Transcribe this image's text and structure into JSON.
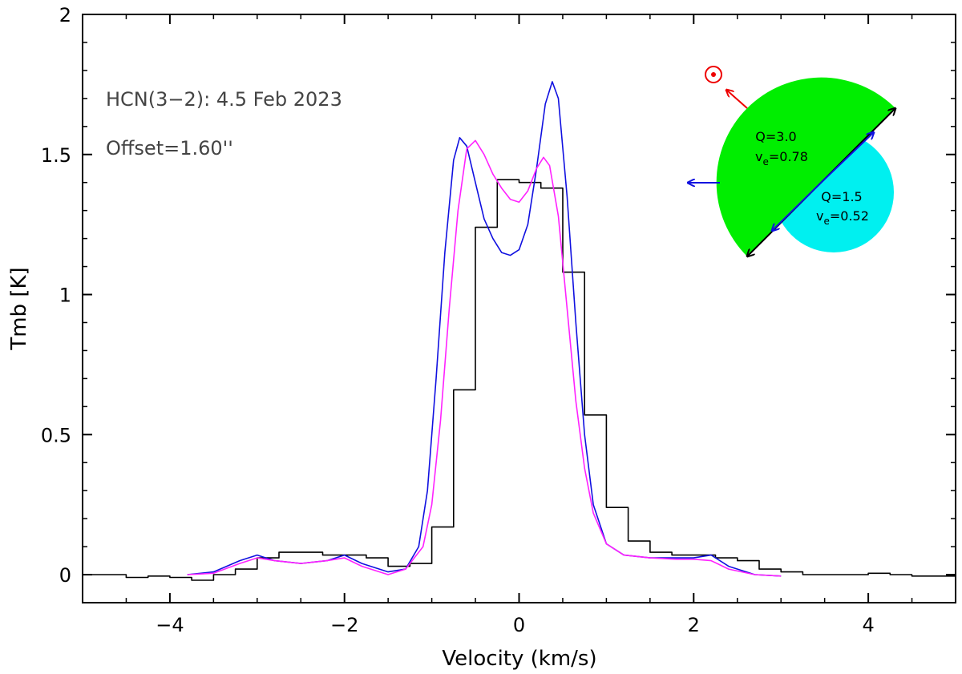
{
  "chart_data": {
    "type": "line",
    "title": "",
    "xlabel": "Velocity (km/s)",
    "ylabel": "Tmb [K]",
    "xlim": [
      -5,
      5
    ],
    "ylim": [
      -0.1,
      2.0
    ],
    "xticks": [
      -4,
      -2,
      0,
      2,
      4
    ],
    "xtick_labels": [
      "−4",
      "−2",
      "0",
      "2",
      "4"
    ],
    "yticks": [
      0,
      0.5,
      1,
      1.5,
      2
    ],
    "ytick_labels": [
      "0",
      "0.5",
      "1",
      "1.5",
      "2"
    ],
    "grid": false,
    "annotations": {
      "line1": "HCN(3−2): 4.5 Feb 2023",
      "line2": "Offset=1.60''"
    },
    "series": [
      {
        "style": "histogram",
        "color": "#000000",
        "x": [
          -5.0,
          -4.75,
          -4.5,
          -4.25,
          -4.0,
          -3.75,
          -3.5,
          -3.25,
          -3.0,
          -2.75,
          -2.5,
          -2.25,
          -2.0,
          -1.75,
          -1.5,
          -1.25,
          -1.0,
          -0.75,
          -0.5,
          -0.25,
          0.0,
          0.25,
          0.5,
          0.75,
          1.0,
          1.25,
          1.5,
          1.75,
          2.0,
          2.25,
          2.5,
          2.75,
          3.0,
          3.25,
          3.5,
          3.75,
          4.0,
          4.25,
          4.5,
          4.75
        ],
        "y": [
          0.0,
          0.0,
          -0.01,
          -0.005,
          -0.01,
          -0.02,
          0.0,
          0.02,
          0.06,
          0.08,
          0.08,
          0.07,
          0.07,
          0.06,
          0.03,
          0.04,
          0.17,
          0.66,
          1.24,
          1.41,
          1.4,
          1.38,
          1.08,
          0.57,
          0.24,
          0.12,
          0.08,
          0.07,
          0.07,
          0.06,
          0.05,
          0.02,
          0.01,
          0.0,
          0.0,
          0.0,
          0.005,
          0.0,
          -0.005,
          -0.005
        ]
      },
      {
        "style": "line",
        "color": "#1010e0",
        "x": [
          -3.8,
          -3.5,
          -3.2,
          -3.0,
          -2.8,
          -2.5,
          -2.2,
          -2.0,
          -1.8,
          -1.5,
          -1.3,
          -1.15,
          -1.05,
          -0.95,
          -0.85,
          -0.75,
          -0.68,
          -0.6,
          -0.5,
          -0.4,
          -0.3,
          -0.2,
          -0.1,
          0.0,
          0.1,
          0.2,
          0.3,
          0.38,
          0.45,
          0.55,
          0.65,
          0.75,
          0.85,
          1.0,
          1.2,
          1.5,
          1.8,
          2.0,
          2.2,
          2.4,
          2.7,
          3.0
        ],
        "y": [
          0.0,
          0.01,
          0.05,
          0.07,
          0.05,
          0.04,
          0.05,
          0.07,
          0.04,
          0.01,
          0.02,
          0.1,
          0.3,
          0.7,
          1.15,
          1.48,
          1.56,
          1.53,
          1.4,
          1.27,
          1.2,
          1.15,
          1.14,
          1.16,
          1.25,
          1.45,
          1.68,
          1.76,
          1.7,
          1.35,
          0.9,
          0.5,
          0.25,
          0.11,
          0.07,
          0.06,
          0.06,
          0.06,
          0.07,
          0.03,
          0.0,
          -0.005
        ]
      },
      {
        "style": "line",
        "color": "#ff22ff",
        "x": [
          -3.8,
          -3.5,
          -3.2,
          -3.0,
          -2.8,
          -2.5,
          -2.2,
          -2.0,
          -1.8,
          -1.5,
          -1.3,
          -1.1,
          -1.0,
          -0.9,
          -0.8,
          -0.7,
          -0.6,
          -0.5,
          -0.4,
          -0.3,
          -0.2,
          -0.1,
          0.0,
          0.1,
          0.2,
          0.28,
          0.35,
          0.45,
          0.55,
          0.65,
          0.75,
          0.85,
          1.0,
          1.2,
          1.5,
          1.8,
          2.0,
          2.2,
          2.4,
          2.7,
          3.0
        ],
        "y": [
          0.0,
          0.005,
          0.04,
          0.06,
          0.05,
          0.04,
          0.05,
          0.06,
          0.03,
          0.0,
          0.02,
          0.1,
          0.25,
          0.55,
          0.95,
          1.3,
          1.52,
          1.55,
          1.5,
          1.43,
          1.38,
          1.34,
          1.33,
          1.37,
          1.45,
          1.49,
          1.46,
          1.28,
          0.95,
          0.62,
          0.38,
          0.22,
          0.11,
          0.07,
          0.06,
          0.055,
          0.055,
          0.05,
          0.02,
          0.0,
          -0.005
        ]
      }
    ],
    "inset": {
      "left_label_q": "Q=3.0",
      "left_label_v_prefix": "v",
      "left_label_v_sub": "e",
      "left_label_v_value": "=0.78",
      "right_label_q": "Q=1.5",
      "right_label_v_prefix": "v",
      "right_label_v_sub": "e",
      "right_label_v_value": "=0.52",
      "colors": {
        "large_hemisphere": "#00ee00",
        "small_hemisphere": "#00f0f0",
        "sun_arrow": "#ee0000",
        "blue_arrow": "#1010e0",
        "axis_arrow": "#000000"
      },
      "icons": [
        "sun-symbol-icon"
      ]
    }
  }
}
